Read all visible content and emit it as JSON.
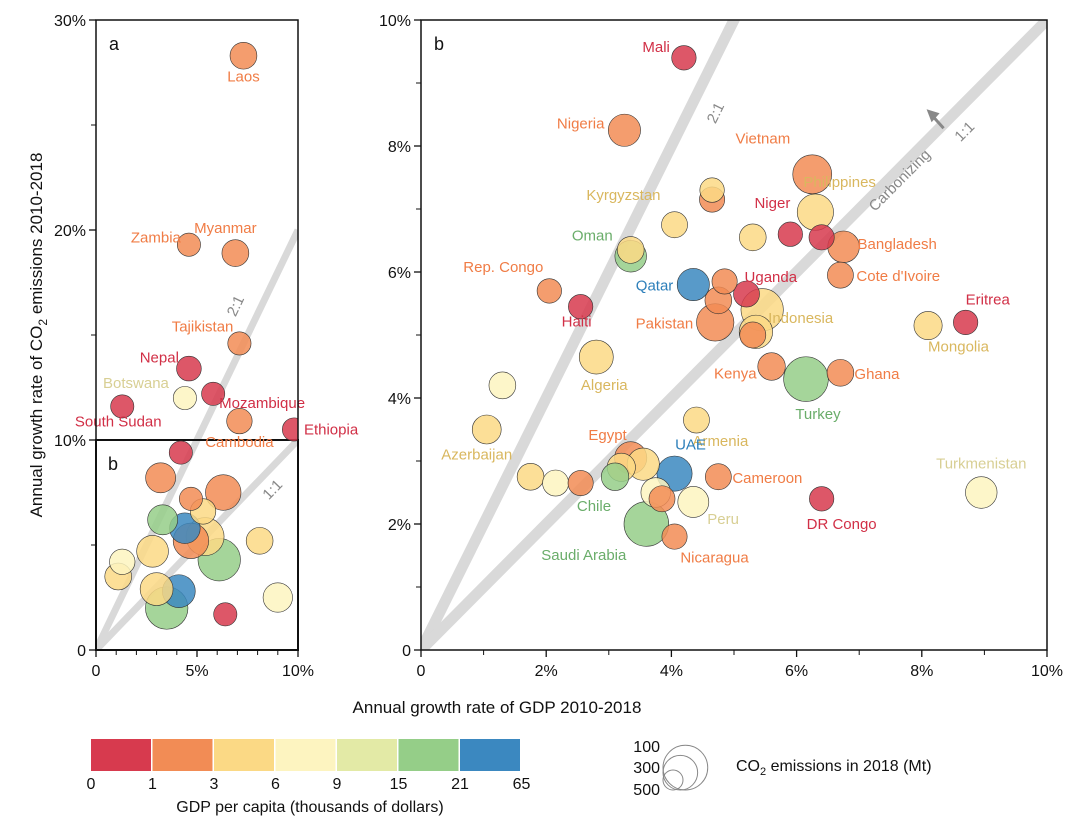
{
  "chart_data": [
    {
      "type": "scatter",
      "panel_label": "a",
      "xlabel": "Annual growth rate of GDP 2010-2018",
      "ylabel_pre": "Annual growth rate of CO",
      "ylabel_sub": "2",
      "ylabel_post": " emissions 2010-2018",
      "xlim": [
        0,
        10
      ],
      "ylim": [
        0,
        30
      ],
      "x_ticks": [
        {
          "v": 0,
          "label": "0"
        },
        {
          "v": 5,
          "label": "5%"
        },
        {
          "v": 10,
          "label": "10%"
        }
      ],
      "y_ticks": [
        {
          "v": 0,
          "label": "0"
        },
        {
          "v": 10,
          "label": "10%"
        },
        {
          "v": 20,
          "label": "20%"
        },
        {
          "v": 30,
          "label": "30%"
        }
      ],
      "inset_label": "b",
      "ratio_lines": [
        {
          "label": "2:1",
          "slope": 2
        },
        {
          "label": "1:1",
          "slope": 1
        }
      ],
      "points": [
        {
          "x": 7.3,
          "y": 28.3,
          "size": 200,
          "gdp_class": 1,
          "label": "Laos"
        },
        {
          "x": 4.6,
          "y": 19.3,
          "size": 150,
          "gdp_class": 1,
          "label": "Zambia"
        },
        {
          "x": 6.9,
          "y": 18.9,
          "size": 200,
          "gdp_class": 1,
          "label": "Myanmar"
        },
        {
          "x": 7.1,
          "y": 14.6,
          "size": 150,
          "gdp_class": 1,
          "label": "Tajikistan"
        },
        {
          "x": 4.6,
          "y": 13.4,
          "size": 170,
          "gdp_class": 0,
          "label": "Nepal"
        },
        {
          "x": 5.8,
          "y": 12.2,
          "size": 150,
          "gdp_class": 0,
          "label": "Mozambique"
        },
        {
          "x": 4.4,
          "y": 12.0,
          "size": 150,
          "gdp_class": 3,
          "label": "Botswana"
        },
        {
          "x": 1.3,
          "y": 11.6,
          "size": 150,
          "gdp_class": 0,
          "label": "South Sudan"
        },
        {
          "x": 7.1,
          "y": 10.9,
          "size": 180,
          "gdp_class": 1,
          "label": "Cambodia"
        },
        {
          "x": 9.8,
          "y": 10.5,
          "size": 150,
          "gdp_class": 0,
          "label": "Ethiopia"
        },
        {
          "x": 4.2,
          "y": 9.4,
          "size": 150,
          "gdp_class": 0,
          "label": ""
        },
        {
          "x": 3.2,
          "y": 8.2,
          "size": 250,
          "gdp_class": 1,
          "label": ""
        },
        {
          "x": 6.3,
          "y": 7.5,
          "size": 350,
          "gdp_class": 1,
          "label": ""
        },
        {
          "x": 5.4,
          "y": 5.4,
          "size": 400,
          "gdp_class": 2,
          "label": ""
        },
        {
          "x": 6.1,
          "y": 4.3,
          "size": 500,
          "gdp_class": 5,
          "label": ""
        },
        {
          "x": 3.5,
          "y": 2.0,
          "size": 500,
          "gdp_class": 5,
          "label": ""
        },
        {
          "x": 4.1,
          "y": 2.8,
          "size": 300,
          "gdp_class": 6,
          "label": ""
        },
        {
          "x": 4.4,
          "y": 5.8,
          "size": 260,
          "gdp_class": 6,
          "label": ""
        },
        {
          "x": 9.0,
          "y": 2.5,
          "size": 240,
          "gdp_class": 3,
          "label": ""
        },
        {
          "x": 8.1,
          "y": 5.2,
          "size": 200,
          "gdp_class": 2,
          "label": ""
        },
        {
          "x": 2.8,
          "y": 4.7,
          "size": 280,
          "gdp_class": 2,
          "label": ""
        },
        {
          "x": 6.4,
          "y": 1.7,
          "size": 150,
          "gdp_class": 0,
          "label": ""
        },
        {
          "x": 1.1,
          "y": 3.5,
          "size": 200,
          "gdp_class": 2,
          "label": ""
        },
        {
          "x": 1.3,
          "y": 4.2,
          "size": 180,
          "gdp_class": 3,
          "label": ""
        },
        {
          "x": 3.3,
          "y": 6.2,
          "size": 250,
          "gdp_class": 5,
          "label": ""
        },
        {
          "x": 4.7,
          "y": 7.2,
          "size": 150,
          "gdp_class": 1,
          "label": ""
        },
        {
          "x": 3.0,
          "y": 2.9,
          "size": 300,
          "gdp_class": 2,
          "label": ""
        },
        {
          "x": 5.3,
          "y": 6.6,
          "size": 180,
          "gdp_class": 2,
          "label": ""
        },
        {
          "x": 4.7,
          "y": 5.2,
          "size": 350,
          "gdp_class": 1,
          "label": ""
        }
      ]
    },
    {
      "type": "scatter",
      "panel_label": "b",
      "xlim": [
        0,
        10
      ],
      "ylim": [
        0,
        10
      ],
      "x_ticks": [
        {
          "v": 0,
          "label": "0"
        },
        {
          "v": 2,
          "label": "2%"
        },
        {
          "v": 4,
          "label": "4%"
        },
        {
          "v": 6,
          "label": "6%"
        },
        {
          "v": 8,
          "label": "8%"
        },
        {
          "v": 10,
          "label": "10%"
        }
      ],
      "y_ticks": [
        {
          "v": 0,
          "label": "0"
        },
        {
          "v": 2,
          "label": "2%"
        },
        {
          "v": 4,
          "label": "4%"
        },
        {
          "v": 6,
          "label": "6%"
        },
        {
          "v": 8,
          "label": "8%"
        },
        {
          "v": 10,
          "label": "10%"
        }
      ],
      "ratio_lines": [
        {
          "label": "2:1",
          "slope": 2
        },
        {
          "label": "1:1",
          "slope": 1
        }
      ],
      "arrow_label": "Carbonizing",
      "points": [
        {
          "x": 4.2,
          "y": 9.4,
          "size": 150,
          "gdp_class": 0,
          "label": "Mali"
        },
        {
          "x": 3.25,
          "y": 8.25,
          "size": 260,
          "gdp_class": 1,
          "label": "Nigeria"
        },
        {
          "x": 6.25,
          "y": 7.55,
          "size": 380,
          "gdp_class": 1,
          "label": "Vietnam"
        },
        {
          "x": 4.65,
          "y": 7.3,
          "size": 150,
          "gdp_class": 2,
          "label": ""
        },
        {
          "x": 4.65,
          "y": 7.15,
          "size": 160,
          "gdp_class": 1,
          "label": ""
        },
        {
          "x": 6.3,
          "y": 6.95,
          "size": 330,
          "gdp_class": 2,
          "label": "Philippines"
        },
        {
          "x": 4.05,
          "y": 6.75,
          "size": 170,
          "gdp_class": 2,
          "label": "Kyrgyzstan"
        },
        {
          "x": 5.3,
          "y": 6.55,
          "size": 180,
          "gdp_class": 2,
          "label": ""
        },
        {
          "x": 5.9,
          "y": 6.6,
          "size": 150,
          "gdp_class": 0,
          "label": "Niger"
        },
        {
          "x": 6.4,
          "y": 6.55,
          "size": 160,
          "gdp_class": 0,
          "label": ""
        },
        {
          "x": 6.75,
          "y": 6.4,
          "size": 250,
          "gdp_class": 1,
          "label": "Bangladesh"
        },
        {
          "x": 3.35,
          "y": 6.35,
          "size": 180,
          "gdp_class": 2,
          "label": ""
        },
        {
          "x": 3.35,
          "y": 6.25,
          "size": 250,
          "gdp_class": 5,
          "label": "Oman"
        },
        {
          "x": 6.7,
          "y": 5.95,
          "size": 170,
          "gdp_class": 1,
          "label": "Cote d'Ivoire"
        },
        {
          "x": 2.05,
          "y": 5.7,
          "size": 150,
          "gdp_class": 1,
          "label": "Rep. Congo"
        },
        {
          "x": 4.35,
          "y": 5.8,
          "size": 260,
          "gdp_class": 6,
          "label": "Qatar"
        },
        {
          "x": 4.85,
          "y": 5.85,
          "size": 160,
          "gdp_class": 1,
          "label": ""
        },
        {
          "x": 5.2,
          "y": 5.65,
          "size": 170,
          "gdp_class": 0,
          "label": "Uganda"
        },
        {
          "x": 5.45,
          "y": 5.4,
          "size": 450,
          "gdp_class": 2,
          "label": "Indonesia"
        },
        {
          "x": 4.75,
          "y": 5.55,
          "size": 180,
          "gdp_class": 1,
          "label": ""
        },
        {
          "x": 2.55,
          "y": 5.45,
          "size": 150,
          "gdp_class": 0,
          "label": "Haiti"
        },
        {
          "x": 4.7,
          "y": 5.2,
          "size": 350,
          "gdp_class": 1,
          "label": "Pakistan"
        },
        {
          "x": 5.35,
          "y": 5.05,
          "size": 280,
          "gdp_class": 2,
          "label": ""
        },
        {
          "x": 5.3,
          "y": 5.0,
          "size": 170,
          "gdp_class": 1,
          "label": ""
        },
        {
          "x": 8.1,
          "y": 5.15,
          "size": 200,
          "gdp_class": 2,
          "label": "Mongolia"
        },
        {
          "x": 8.7,
          "y": 5.2,
          "size": 150,
          "gdp_class": 0,
          "label": "Eritrea"
        },
        {
          "x": 2.8,
          "y": 4.65,
          "size": 290,
          "gdp_class": 2,
          "label": "Algeria"
        },
        {
          "x": 5.6,
          "y": 4.5,
          "size": 190,
          "gdp_class": 1,
          "label": "Kenya"
        },
        {
          "x": 6.7,
          "y": 4.4,
          "size": 180,
          "gdp_class": 1,
          "label": "Ghana"
        },
        {
          "x": 6.15,
          "y": 4.3,
          "size": 500,
          "gdp_class": 5,
          "label": "Turkey"
        },
        {
          "x": 1.3,
          "y": 4.2,
          "size": 180,
          "gdp_class": 3,
          "label": ""
        },
        {
          "x": 4.4,
          "y": 3.65,
          "size": 170,
          "gdp_class": 2,
          "label": "Armenia"
        },
        {
          "x": 1.05,
          "y": 3.5,
          "size": 210,
          "gdp_class": 2,
          "label": "Azerbaijan"
        },
        {
          "x": 3.35,
          "y": 3.05,
          "size": 260,
          "gdp_class": 1,
          "label": "Egypt"
        },
        {
          "x": 3.55,
          "y": 2.95,
          "size": 260,
          "gdp_class": 2,
          "label": ""
        },
        {
          "x": 3.2,
          "y": 2.9,
          "size": 200,
          "gdp_class": 2,
          "label": ""
        },
        {
          "x": 4.05,
          "y": 2.8,
          "size": 310,
          "gdp_class": 6,
          "label": "UAE"
        },
        {
          "x": 4.75,
          "y": 2.75,
          "size": 170,
          "gdp_class": 1,
          "label": "Cameroon"
        },
        {
          "x": 1.75,
          "y": 2.75,
          "size": 180,
          "gdp_class": 2,
          "label": ""
        },
        {
          "x": 2.15,
          "y": 2.65,
          "size": 170,
          "gdp_class": 3,
          "label": ""
        },
        {
          "x": 2.55,
          "y": 2.65,
          "size": 160,
          "gdp_class": 1,
          "label": ""
        },
        {
          "x": 3.1,
          "y": 2.75,
          "size": 190,
          "gdp_class": 5,
          "label": "Chile"
        },
        {
          "x": 8.95,
          "y": 2.5,
          "size": 250,
          "gdp_class": 3,
          "label": "Turkmenistan"
        },
        {
          "x": 3.75,
          "y": 2.5,
          "size": 220,
          "gdp_class": 3,
          "label": ""
        },
        {
          "x": 3.85,
          "y": 2.4,
          "size": 170,
          "gdp_class": 1,
          "label": ""
        },
        {
          "x": 4.35,
          "y": 2.35,
          "size": 240,
          "gdp_class": 3,
          "label": "Peru"
        },
        {
          "x": 6.4,
          "y": 2.4,
          "size": 150,
          "gdp_class": 0,
          "label": "DR Congo"
        },
        {
          "x": 3.6,
          "y": 2.0,
          "size": 500,
          "gdp_class": 5,
          "label": "Saudi Arabia"
        },
        {
          "x": 4.05,
          "y": 1.8,
          "size": 160,
          "gdp_class": 1,
          "label": "Nicaragua"
        }
      ]
    }
  ],
  "colorbar": {
    "title": "GDP per capita (thousands of dollars)",
    "colors": [
      "#d73a4e",
      "#f28c55",
      "#fbd985",
      "#fdf4c0",
      "#e3eaa6",
      "#95ce88",
      "#3b88c0"
    ],
    "tick_labels": [
      "0",
      "1",
      "3",
      "6",
      "9",
      "15",
      "21",
      "65"
    ]
  },
  "size_legend": {
    "values": [
      "100",
      "300",
      "500"
    ],
    "title_pre": "CO",
    "title_sub": "2",
    "title_post": " emissions in 2018 (Mt)"
  },
  "label_colors": [
    "#d12f46",
    "#f07c45",
    "#d9b75e",
    "#d8cf94",
    "#c9d07a",
    "#6aad6a",
    "#2d7fba"
  ]
}
